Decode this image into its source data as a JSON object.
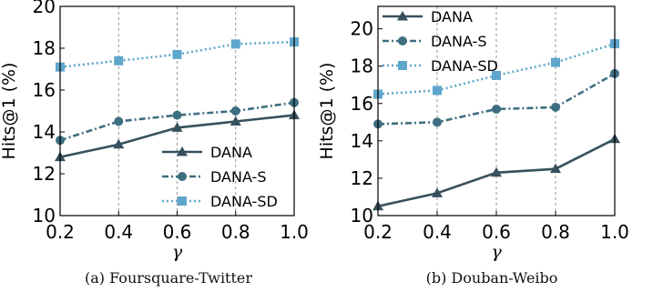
{
  "colors": {
    "DANA": "#37505d",
    "DANA-S": "#3e6f80",
    "DANA-SD": "#5fa6cc",
    "axis": "#000000",
    "grid": "#8a8a8a"
  },
  "chart_data": [
    {
      "type": "line",
      "title": "",
      "caption_tag": "(a)",
      "caption": "Foursquare-Twitter",
      "xlabel": "γ",
      "ylabel": "Hits@1 (%)",
      "x": [
        0.2,
        0.4,
        0.6,
        0.8,
        1.0
      ],
      "xlim": [
        0.2,
        1.0
      ],
      "ylim": [
        10,
        20
      ],
      "xticks": [
        "0.2",
        "0.4",
        "0.6",
        "0.8",
        "1.0"
      ],
      "yticks": [
        "10",
        "12",
        "14",
        "16",
        "18",
        "20"
      ],
      "grid": "vertical-dashed",
      "legend_position": "lower-right",
      "series": [
        {
          "name": "DANA",
          "marker": "triangle",
          "line": "solid",
          "values": [
            12.8,
            13.4,
            14.2,
            14.5,
            14.8
          ]
        },
        {
          "name": "DANA-S",
          "marker": "circle",
          "line": "dash-dot",
          "values": [
            13.6,
            14.5,
            14.8,
            15.0,
            15.4
          ]
        },
        {
          "name": "DANA-SD",
          "marker": "square",
          "line": "dotted",
          "values": [
            17.1,
            17.4,
            17.7,
            18.2,
            18.3
          ]
        }
      ]
    },
    {
      "type": "line",
      "title": "",
      "caption_tag": "(b)",
      "caption": "Douban-Weibo",
      "xlabel": "γ",
      "ylabel": "Hits@1 (%)",
      "x": [
        0.2,
        0.4,
        0.6,
        0.8,
        1.0
      ],
      "xlim": [
        0.2,
        1.0
      ],
      "ylim": [
        10,
        21.2
      ],
      "xticks": [
        "0.2",
        "0.4",
        "0.6",
        "0.8",
        "1.0"
      ],
      "yticks": [
        "10",
        "12",
        "14",
        "16",
        "18",
        "20"
      ],
      "grid": "vertical-dashed",
      "legend_position": "upper-left",
      "series": [
        {
          "name": "DANA",
          "marker": "triangle",
          "line": "solid",
          "values": [
            10.5,
            11.2,
            12.3,
            12.5,
            14.1
          ]
        },
        {
          "name": "DANA-S",
          "marker": "circle",
          "line": "dash-dot",
          "values": [
            14.9,
            15.0,
            15.7,
            15.8,
            17.6
          ]
        },
        {
          "name": "DANA-SD",
          "marker": "square",
          "line": "dotted",
          "values": [
            16.5,
            16.7,
            17.5,
            18.2,
            19.2
          ]
        }
      ]
    }
  ]
}
